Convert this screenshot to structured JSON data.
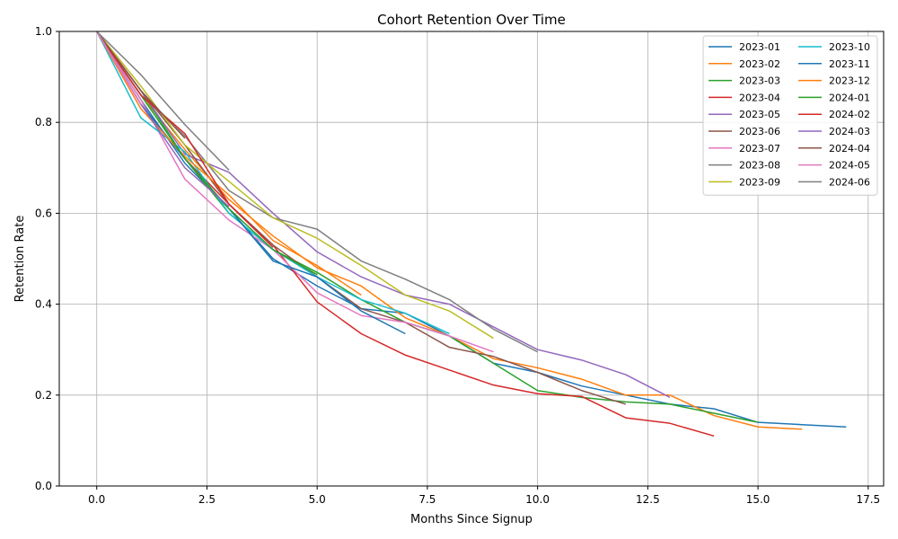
{
  "chart_data": {
    "type": "line",
    "title": "Cohort Retention Over Time",
    "xlabel": "Months Since Signup",
    "ylabel": "Retention Rate",
    "xlim": [
      -0.85,
      17.85
    ],
    "ylim": [
      0.0,
      1.0
    ],
    "xticks": [
      0.0,
      2.5,
      5.0,
      7.5,
      10.0,
      12.5,
      15.0,
      17.5
    ],
    "xtick_labels": [
      "0.0",
      "2.5",
      "5.0",
      "7.5",
      "10.0",
      "12.5",
      "15.0",
      "17.5"
    ],
    "yticks": [
      0.0,
      0.2,
      0.4,
      0.6,
      0.8,
      1.0
    ],
    "ytick_labels": [
      "0.0",
      "0.2",
      "0.4",
      "0.6",
      "0.8",
      "1.0"
    ],
    "grid": true,
    "legend": {
      "position": "top-right",
      "columns": 2
    },
    "series": [
      {
        "name": "2023-01",
        "color": "#1f77b4",
        "x": [
          0,
          1,
          2,
          3,
          4,
          5,
          6,
          7,
          8,
          9,
          10,
          11,
          12,
          13,
          14,
          15,
          16,
          17
        ],
        "y": [
          1.0,
          0.85,
          0.71,
          0.61,
          0.5,
          0.44,
          0.39,
          0.38,
          0.33,
          0.27,
          0.25,
          0.22,
          0.2,
          0.18,
          0.17,
          0.14,
          0.135,
          0.13
        ]
      },
      {
        "name": "2023-02",
        "color": "#ff7f0e",
        "x": [
          0,
          1,
          2,
          3,
          4,
          5,
          6,
          7,
          8,
          9,
          10,
          11,
          12,
          13,
          14,
          15,
          16
        ],
        "y": [
          1.0,
          0.86,
          0.74,
          0.63,
          0.55,
          0.48,
          0.44,
          0.37,
          0.33,
          0.28,
          0.26,
          0.235,
          0.2,
          0.2,
          0.155,
          0.13,
          0.125
        ]
      },
      {
        "name": "2023-03",
        "color": "#2ca02c",
        "x": [
          0,
          1,
          2,
          3,
          4,
          5,
          6,
          7,
          8,
          9,
          10,
          11,
          12,
          13,
          14,
          15
        ],
        "y": [
          1.0,
          0.87,
          0.72,
          0.6,
          0.52,
          0.47,
          0.41,
          0.36,
          0.33,
          0.27,
          0.21,
          0.195,
          0.185,
          0.18,
          0.16,
          0.14
        ]
      },
      {
        "name": "2023-04",
        "color": "#d62728",
        "x": [
          0,
          1,
          2,
          3,
          4,
          5,
          6,
          7,
          8,
          9,
          10,
          11,
          12,
          13,
          14
        ],
        "y": [
          1.0,
          0.84,
          0.72,
          0.62,
          0.53,
          0.405,
          0.335,
          0.288,
          0.255,
          0.222,
          0.203,
          0.197,
          0.15,
          0.138,
          0.11
        ]
      },
      {
        "name": "2023-05",
        "color": "#9467bd",
        "x": [
          0,
          1,
          2,
          3,
          4,
          5,
          6,
          7,
          8,
          9,
          10,
          11,
          12,
          13
        ],
        "y": [
          1.0,
          0.87,
          0.73,
          0.69,
          0.6,
          0.515,
          0.46,
          0.42,
          0.4,
          0.35,
          0.3,
          0.277,
          0.245,
          0.195
        ]
      },
      {
        "name": "2023-06",
        "color": "#8c564b",
        "x": [
          0,
          1,
          2,
          3,
          4,
          5,
          6,
          7,
          8,
          9,
          10,
          11,
          12
        ],
        "y": [
          1.0,
          0.87,
          0.75,
          0.62,
          0.53,
          0.46,
          0.39,
          0.36,
          0.305,
          0.285,
          0.25,
          0.21,
          0.18
        ]
      },
      {
        "name": "2023-07",
        "color": "#e377c2",
        "x": [
          0,
          1,
          2,
          3,
          4,
          5,
          6,
          7,
          8,
          9
        ],
        "y": [
          1.0,
          0.85,
          0.675,
          0.585,
          0.52,
          0.425,
          0.375,
          0.36,
          0.33,
          0.295
        ]
      },
      {
        "name": "2023-08",
        "color": "#7f7f7f",
        "x": [
          0,
          1,
          2,
          3,
          4,
          5,
          6,
          7,
          8,
          9,
          10
        ],
        "y": [
          1.0,
          0.86,
          0.77,
          0.65,
          0.59,
          0.565,
          0.495,
          0.455,
          0.41,
          0.345,
          0.295
        ]
      },
      {
        "name": "2023-09",
        "color": "#bcbd22",
        "x": [
          0,
          1,
          2,
          3,
          4,
          5,
          6,
          7,
          8,
          9
        ],
        "y": [
          1.0,
          0.88,
          0.75,
          0.67,
          0.59,
          0.545,
          0.485,
          0.42,
          0.385,
          0.325
        ]
      },
      {
        "name": "2023-10",
        "color": "#17becf",
        "x": [
          0,
          1,
          2,
          3,
          4,
          5,
          6,
          7,
          8
        ],
        "y": [
          1.0,
          0.81,
          0.735,
          0.6,
          0.52,
          0.46,
          0.41,
          0.38,
          0.335
        ]
      },
      {
        "name": "2023-11",
        "color": "#1f77b4",
        "x": [
          0,
          1,
          2,
          3,
          4,
          5,
          6,
          7
        ],
        "y": [
          1.0,
          0.84,
          0.72,
          0.61,
          0.495,
          0.46,
          0.385,
          0.335
        ]
      },
      {
        "name": "2023-12",
        "color": "#ff7f0e",
        "x": [
          0,
          1,
          2,
          3,
          4,
          5,
          6
        ],
        "y": [
          1.0,
          0.83,
          0.725,
          0.64,
          0.54,
          0.485,
          0.42
        ]
      },
      {
        "name": "2024-01",
        "color": "#2ca02c",
        "x": [
          0,
          1,
          2,
          3,
          4,
          5
        ],
        "y": [
          1.0,
          0.86,
          0.72,
          0.61,
          0.52,
          0.465
        ]
      },
      {
        "name": "2024-02",
        "color": "#d62728",
        "x": [
          0,
          1,
          2,
          3,
          4
        ],
        "y": [
          1.0,
          0.86,
          0.775,
          0.62,
          0.525
        ]
      },
      {
        "name": "2024-03",
        "color": "#9467bd",
        "x": [
          0,
          1,
          2,
          3
        ],
        "y": [
          1.0,
          0.84,
          0.7,
          0.615
        ]
      },
      {
        "name": "2024-04",
        "color": "#8c564b",
        "x": [
          0,
          1,
          2
        ],
        "y": [
          1.0,
          0.87,
          0.765
        ]
      },
      {
        "name": "2024-05",
        "color": "#e377c2",
        "x": [
          0,
          1
        ],
        "y": [
          1.0,
          0.84
        ]
      },
      {
        "name": "2024-06",
        "color": "#7f7f7f",
        "x": [
          0,
          1,
          2,
          3
        ],
        "y": [
          1.0,
          0.905,
          0.795,
          0.695
        ]
      }
    ]
  }
}
